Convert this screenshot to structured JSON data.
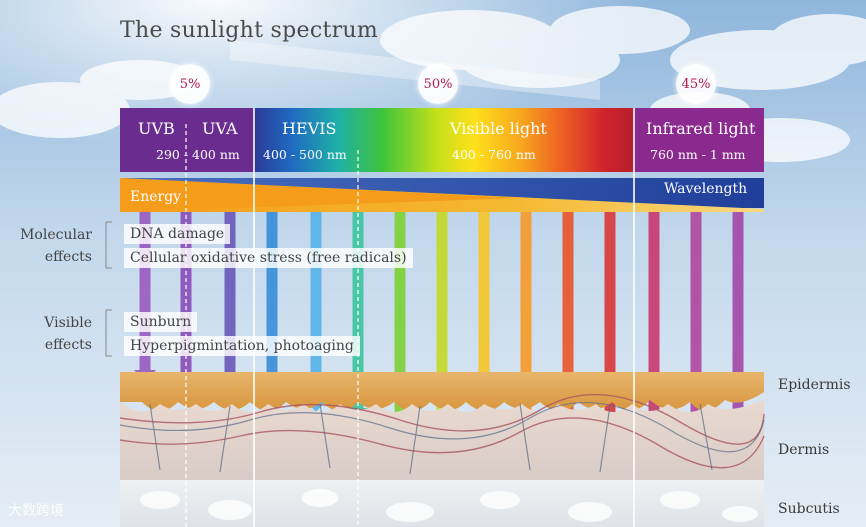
{
  "title": "The sunlight spectrum",
  "percentages": [
    {
      "label": "5%"
    },
    {
      "label": "50%"
    },
    {
      "label": "45%"
    }
  ],
  "bands": {
    "uvb": "UVB",
    "uva": "UVA",
    "uv_range": "290 - 400 nm",
    "hevis": "HEVIS",
    "hevis_range": "400 - 500 nm",
    "visible": "Visible light",
    "visible_range": "400 - 760 nm",
    "infrared": "Infrared light",
    "infrared_range": "760 nm - 1 mm"
  },
  "energy_label": "Energy",
  "wavelength_label": "Wavelength",
  "molecular": {
    "label_line1": "Molecular",
    "label_line2": "effects",
    "items": [
      "DNA damage",
      "Cellular oxidative stress (free radicals)"
    ]
  },
  "visible_effects": {
    "label_line1": "Visible",
    "label_line2": "effects",
    "items": [
      "Sunburn",
      "Hyperpigmintation, photoaging"
    ]
  },
  "skin_layers": [
    "Epidermis",
    "Dermis",
    "Subcutis"
  ],
  "watermark": "大数跨境",
  "colors": {
    "uv_purple": "#6a2c8e",
    "hevis_blue": "#2e3a97",
    "infrared_magenta": "#8a2a8e",
    "accent_pink": "#b1194a"
  }
}
